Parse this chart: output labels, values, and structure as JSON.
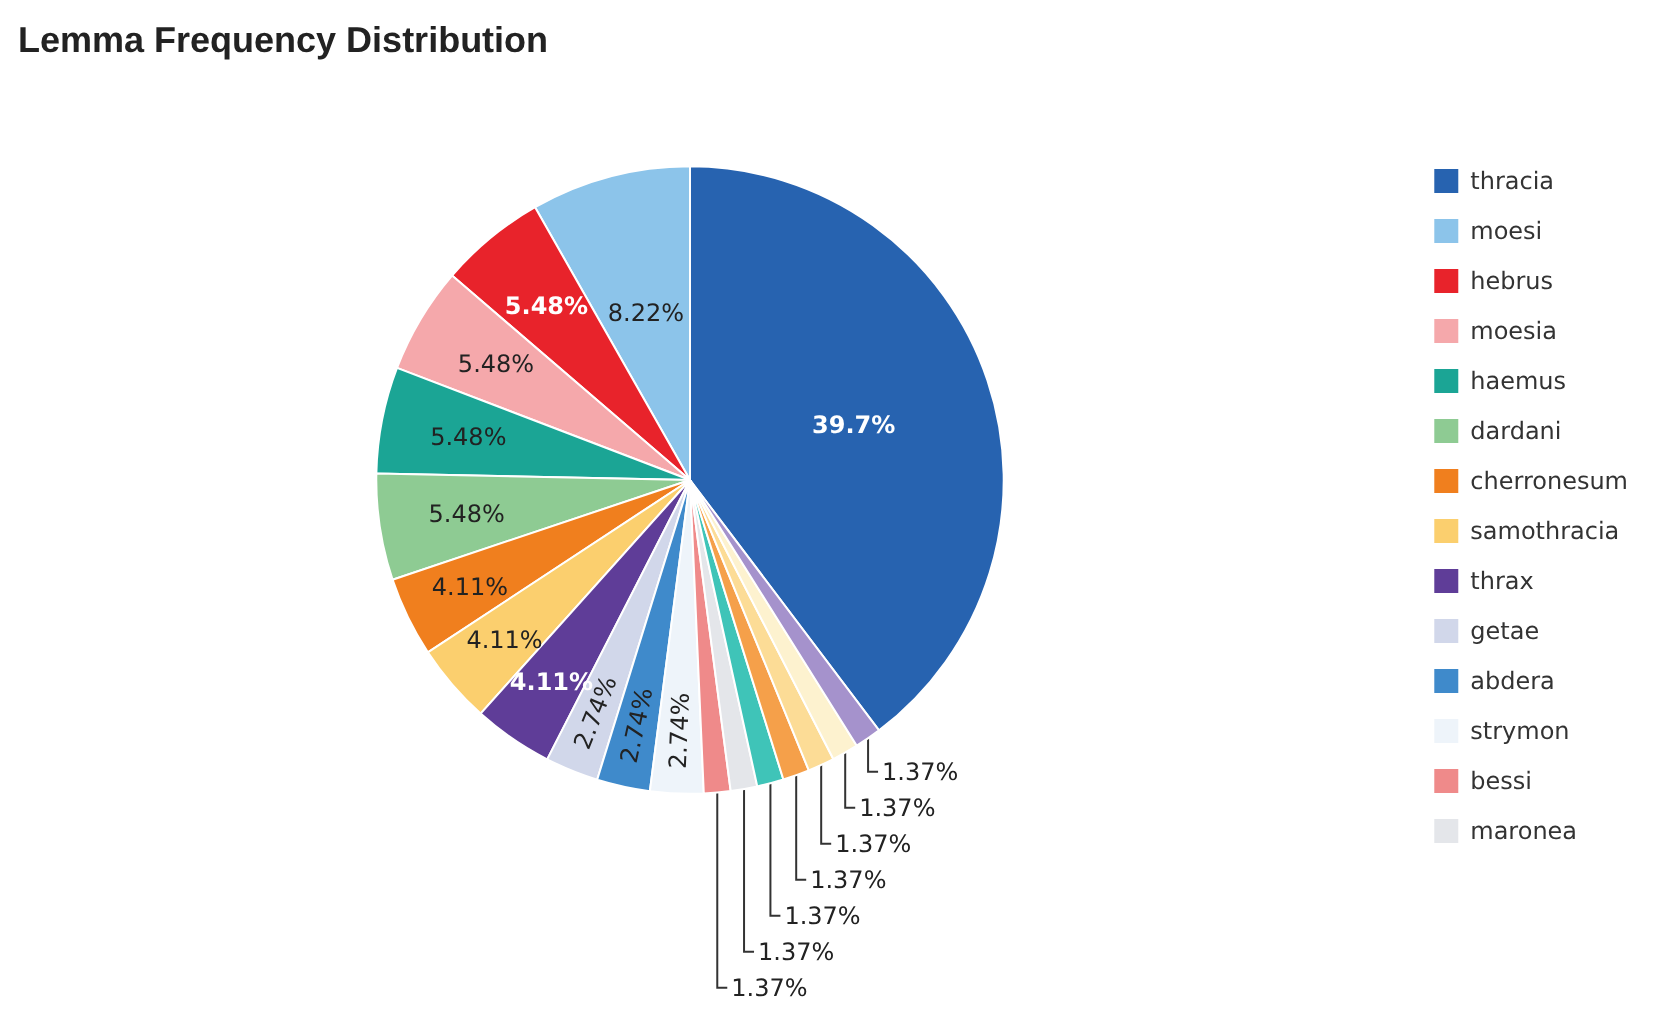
{
  "chart_data": {
    "type": "pie",
    "title": "Lemma Frequency Distribution",
    "categories": [
      "thracia",
      "moesi",
      "hebrus",
      "moesia",
      "haemus",
      "dardani",
      "cherronesum",
      "samothracia",
      "thrax",
      "getae",
      "abdera",
      "strymon",
      "bessi",
      "maronea",
      null,
      null,
      null,
      null,
      null
    ],
    "values": [
      39.7,
      8.22,
      5.48,
      5.48,
      5.48,
      5.48,
      4.11,
      4.11,
      4.11,
      2.74,
      2.74,
      2.74,
      1.37,
      1.37,
      1.37,
      1.37,
      1.37,
      1.37,
      1.37
    ],
    "value_labels": [
      "39.7%",
      "8.22%",
      "5.48%",
      "5.48%",
      "5.48%",
      "5.48%",
      "4.11%",
      "4.11%",
      "4.11%",
      "2.74%",
      "2.74%",
      "2.74%",
      "1.37%",
      "1.37%",
      "1.37%",
      "1.37%",
      "1.37%",
      "1.37%",
      "1.37%"
    ],
    "colors": [
      "#2763b0",
      "#8cc4ea",
      "#e8232b",
      "#f5a8ab",
      "#1ba595",
      "#8ecb93",
      "#f07f1e",
      "#fbcf6e",
      "#5f3d98",
      "#d1d7ea",
      "#3f8acb",
      "#eef4fa",
      "#ef8a8a",
      "#e4e6ea",
      "#3fc4b8",
      "#f5a04a",
      "#fcdc96",
      "#fdf2cf",
      "#a592cc"
    ],
    "legend": "right"
  }
}
